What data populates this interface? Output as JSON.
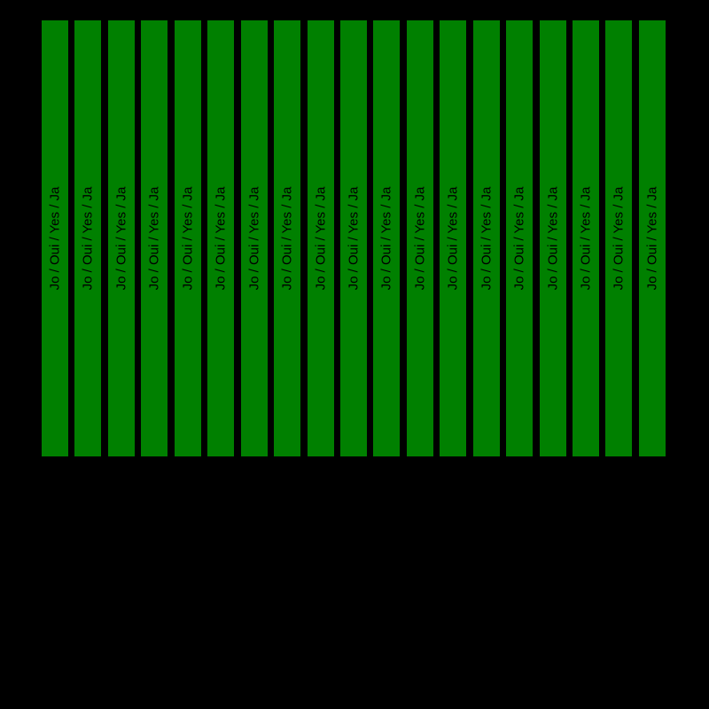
{
  "chart_data": {
    "type": "bar",
    "title": "",
    "orientation": "vertical",
    "bar_count": 19,
    "bar_label": "Jo / Oui / Yes / Ja",
    "values": [
      1,
      1,
      1,
      1,
      1,
      1,
      1,
      1,
      1,
      1,
      1,
      1,
      1,
      1,
      1,
      1,
      1,
      1,
      1
    ],
    "ylim": [
      0,
      1
    ],
    "grid": false,
    "axes_visible": false,
    "legend": null,
    "colors": {
      "background": "#000000",
      "bar_fill": "#008000",
      "bar_label_text": "#000000"
    }
  }
}
